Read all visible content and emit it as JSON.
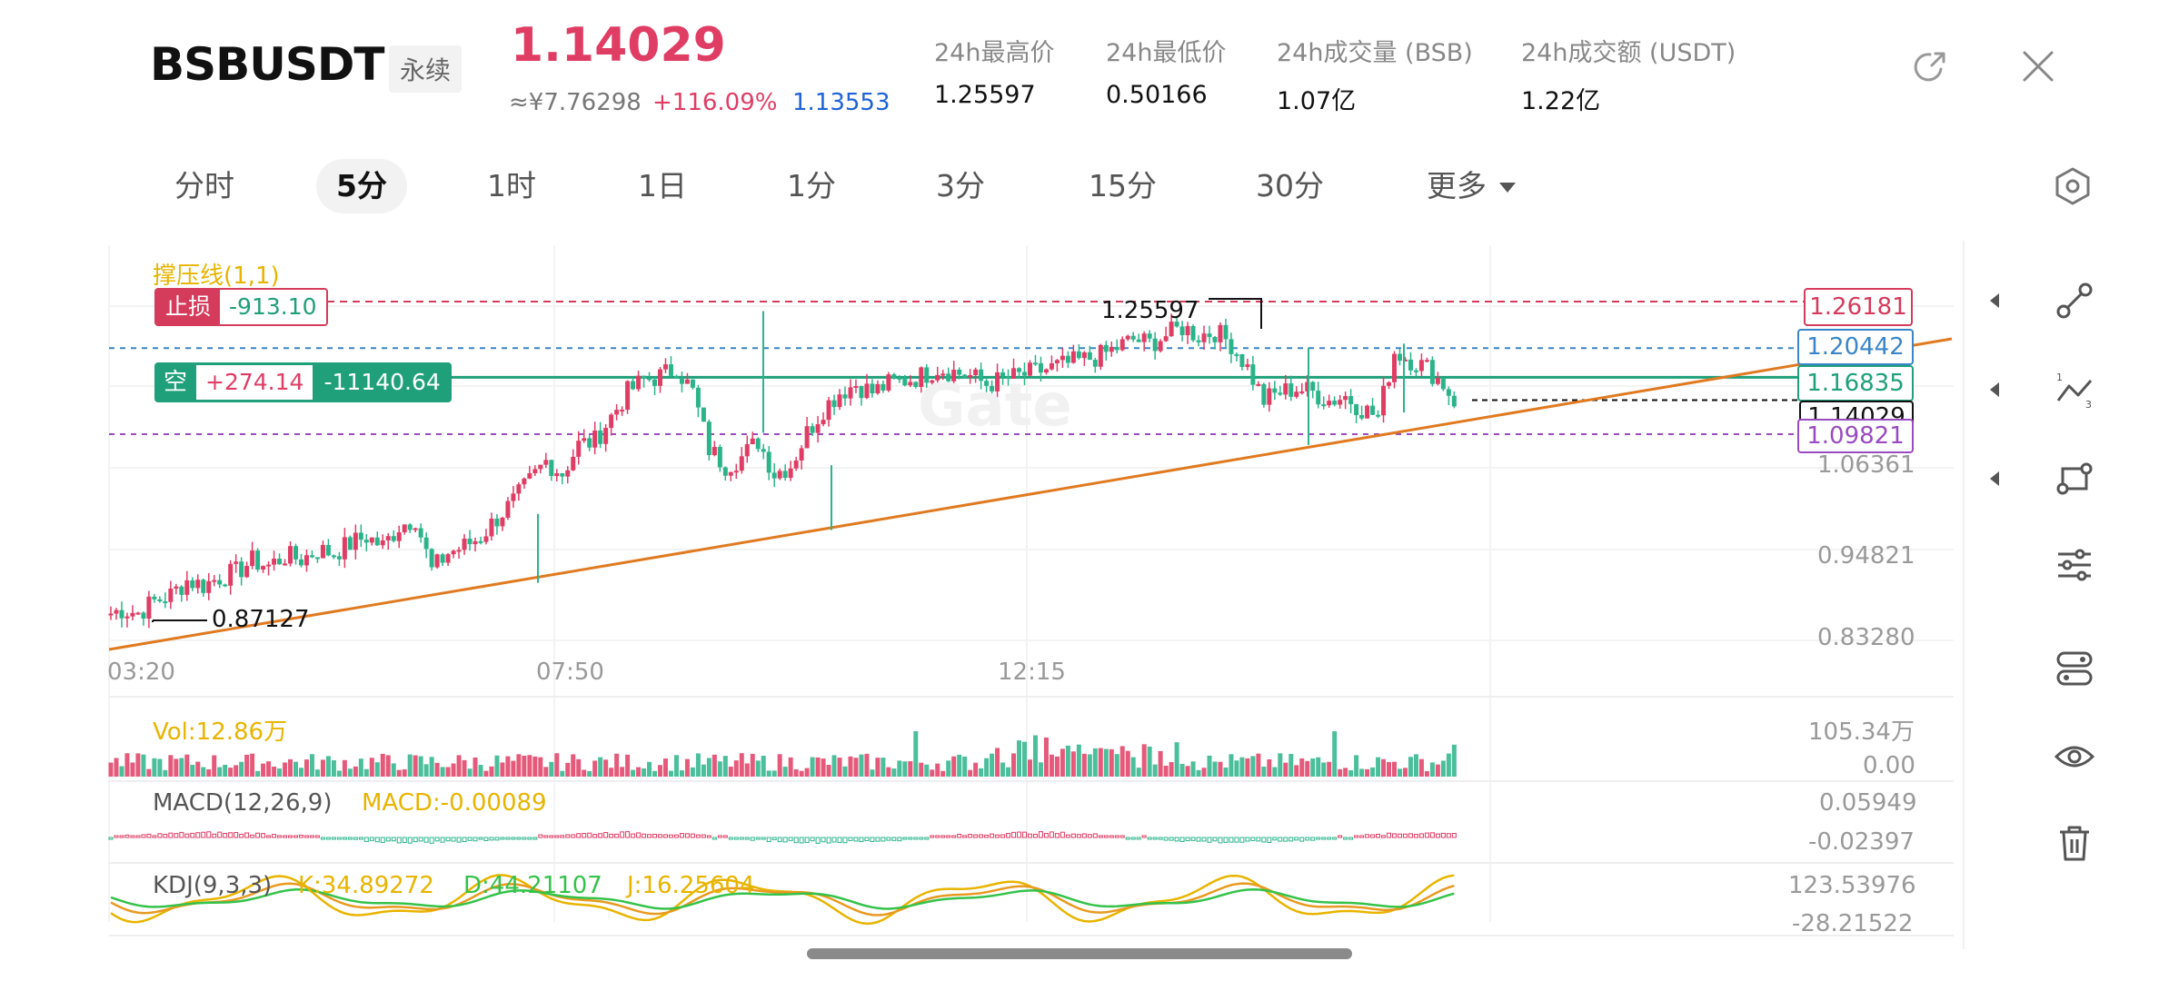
{
  "header": {
    "symbol": "BSBUSDT",
    "contract_type": "永续",
    "last_price": "1.14029",
    "cny_price": "≈¥7.76298",
    "change_pct": "+116.09%",
    "mark_price": "1.13553",
    "stats": [
      {
        "label": "24h最高价",
        "value": "1.25597"
      },
      {
        "label": "24h最低价",
        "value": "0.50166"
      },
      {
        "label": "24h成交量 (BSB)",
        "value": "1.07亿"
      },
      {
        "label": "24h成交额 (USDT)",
        "value": "1.22亿"
      }
    ],
    "buttons": {
      "share": "share-icon",
      "close": "close-icon"
    }
  },
  "tabs": [
    {
      "label": "分时",
      "active": false
    },
    {
      "label": "5分",
      "active": true
    },
    {
      "label": "1时",
      "active": false
    },
    {
      "label": "1日",
      "active": false
    },
    {
      "label": "1分",
      "active": false
    },
    {
      "label": "3分",
      "active": false
    },
    {
      "label": "15分",
      "active": false
    },
    {
      "label": "30分",
      "active": false
    },
    {
      "label": "更多",
      "active": false
    }
  ],
  "colors": {
    "up": "#e03d64",
    "down": "#2bb48a",
    "position_line": "#1fa07a",
    "take_profit_dash": "#3a86c8",
    "stop_line": "#d53b5b",
    "entry_dash": "#9a4bc0",
    "trendline": "#e07a20",
    "indicator_yellow": "#e8b400"
  },
  "chart": {
    "indicator_name": "撑压线(1,1)",
    "stop_loss": {
      "label": "止损",
      "value": "-913.10"
    },
    "position": {
      "side": "空",
      "pnl": "+274.14",
      "amount": "-11140.64"
    },
    "high_marker": "1.25597",
    "low_marker": "0.87127",
    "right_tags": [
      {
        "value": "1.26181",
        "style": "stop"
      },
      {
        "value": "1.20442",
        "style": "tp"
      },
      {
        "value": "1.16835",
        "style": "pos"
      },
      {
        "value": "1.14029",
        "style": "last"
      },
      {
        "value": "1.09821",
        "style": "entry"
      }
    ],
    "yaxis": [
      "1.06361",
      "0.94821",
      "0.83280"
    ],
    "xaxis": [
      "03:20",
      "07:50",
      "12:15"
    ],
    "watermark": "Gate"
  },
  "volume": {
    "label": "Vol:12.86万",
    "max": "105.34万",
    "min": "0.00"
  },
  "macd": {
    "label": "MACD(12,26,9)",
    "value": "MACD:-0.00089",
    "max": "0.05949",
    "min": "-0.02397"
  },
  "kdj": {
    "label": "KDJ(9,3,3)",
    "k": "K:34.89272",
    "d": "D:44.21107",
    "j": "J:16.25604",
    "max": "123.53976",
    "min": "-28.21522"
  },
  "chart_data": {
    "type": "candlestick",
    "interval": "5分",
    "time_labels": [
      "03:20",
      "07:50",
      "12:15"
    ],
    "price_axis": {
      "ticks": [
        1.06361,
        0.94821,
        0.8328
      ]
    },
    "key_levels": {
      "stop": 1.26181,
      "take_profit": 1.20442,
      "position": 1.16835,
      "last": 1.14029,
      "entry": 1.09821,
      "high": 1.25597,
      "low": 0.87127
    },
    "close_path": [
      0.875,
      0.882,
      0.878,
      0.892,
      0.9,
      0.918,
      0.912,
      0.922,
      0.928,
      0.942,
      0.936,
      0.948,
      0.944,
      0.955,
      0.952,
      0.963,
      0.972,
      0.96,
      0.985,
      0.995,
      0.93,
      0.952,
      0.96,
      0.972,
      0.995,
      1.015,
      1.04,
      1.065,
      1.05,
      1.085,
      1.09,
      1.12,
      1.15,
      1.165,
      1.17,
      1.18,
      1.15,
      1.08,
      1.06,
      1.07,
      1.09,
      1.05,
      1.06,
      1.1,
      1.13,
      1.15,
      1.16,
      1.15,
      1.16,
      1.165,
      1.17,
      1.18,
      1.175,
      1.17,
      1.16,
      1.165,
      1.17,
      1.175,
      1.18,
      1.185,
      1.19,
      1.195,
      1.205,
      1.215,
      1.21,
      1.22,
      1.23,
      1.22,
      1.225,
      1.21,
      1.18,
      1.14,
      1.15,
      1.155,
      1.15,
      1.14,
      1.145,
      1.13,
      1.12,
      1.2,
      1.19,
      1.18,
      1.16,
      1.14
    ]
  }
}
